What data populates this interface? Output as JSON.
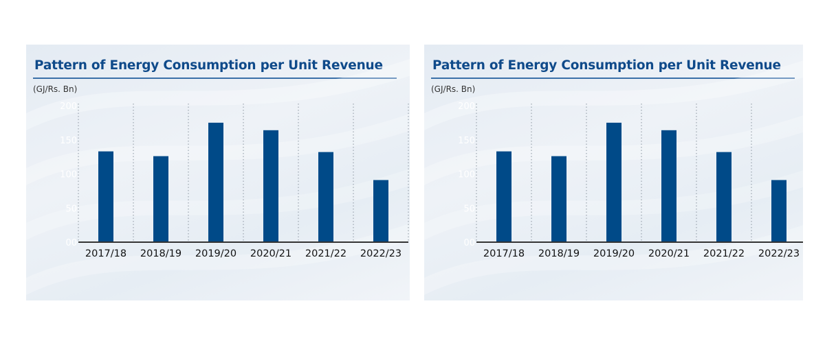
{
  "colors": {
    "bar": "#004a88",
    "title": "#0f4a8a",
    "axis": "#333333",
    "ytick": "#ffffff"
  },
  "chart_data": [
    {
      "type": "bar",
      "title": "Pattern of Energy Consumption per Unit Revenue",
      "ylabel": "(GJ/Rs. Bn)",
      "xlabel": "",
      "categories": [
        "2017/18",
        "2018/19",
        "2019/20",
        "2020/21",
        "2021/22",
        "2022/23"
      ],
      "values": [
        133,
        126,
        175,
        164,
        132,
        91
      ],
      "yticks": [
        "00",
        "50",
        "100",
        "150",
        "200"
      ],
      "ylim": [
        0,
        200
      ],
      "grid": "vertical dotted"
    },
    {
      "type": "bar",
      "title": "Pattern of Energy Consumption per Unit Revenue",
      "ylabel": "(GJ/Rs. Bn)",
      "xlabel": "",
      "categories": [
        "2017/18",
        "2018/19",
        "2019/20",
        "2020/21",
        "2021/22",
        "2022/23"
      ],
      "values": [
        133,
        126,
        175,
        164,
        132,
        91
      ],
      "yticks": [
        "00",
        "50",
        "100",
        "150",
        "200"
      ],
      "ylim": [
        0,
        200
      ],
      "grid": "vertical dotted"
    }
  ]
}
